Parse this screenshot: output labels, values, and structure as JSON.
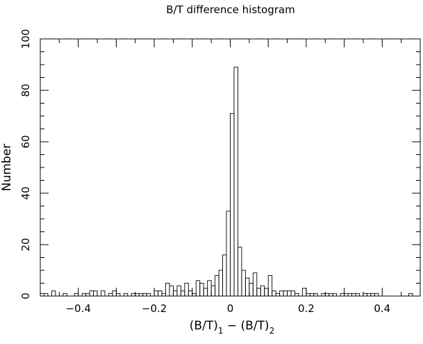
{
  "chart_data": {
    "type": "bar",
    "title": "B/T difference histogram",
    "ylabel": "Number",
    "xlabel": {
      "parts": [
        "(B/T)",
        "1",
        " − (B/T)",
        "2"
      ]
    },
    "xlim": [
      -0.5,
      0.5
    ],
    "ylim": [
      0,
      100
    ],
    "x_ticks": [
      -0.4,
      -0.2,
      0,
      0.2,
      0.4
    ],
    "x_tick_labels": [
      "−0.4",
      "−0.2",
      "0",
      "0.2",
      "0.4"
    ],
    "y_ticks": [
      0,
      20,
      40,
      60,
      80,
      100
    ],
    "y_tick_labels": [
      "0",
      "20",
      "40",
      "60",
      "80",
      "100"
    ],
    "bin_width": 0.01,
    "bin_start": -0.5,
    "values": [
      1,
      1,
      0,
      2,
      0,
      0,
      1,
      0,
      0,
      1,
      0,
      1,
      1,
      2,
      2,
      0,
      2,
      0,
      1,
      2,
      1,
      0,
      1,
      0,
      1,
      1,
      1,
      1,
      1,
      0,
      2,
      2,
      1,
      5,
      4,
      2,
      4,
      2,
      5,
      2,
      1,
      6,
      5,
      3,
      6,
      4,
      8,
      10,
      16,
      33,
      71,
      89,
      19,
      10,
      7,
      5,
      9,
      3,
      4,
      3,
      8,
      2,
      1,
      2,
      2,
      2,
      2,
      1,
      0,
      3,
      1,
      1,
      1,
      0,
      1,
      1,
      1,
      1,
      0,
      1,
      1,
      1,
      1,
      1,
      0,
      1,
      1,
      1,
      1,
      0,
      0,
      0,
      0,
      0,
      0,
      0,
      0,
      1,
      0,
      0
    ]
  }
}
